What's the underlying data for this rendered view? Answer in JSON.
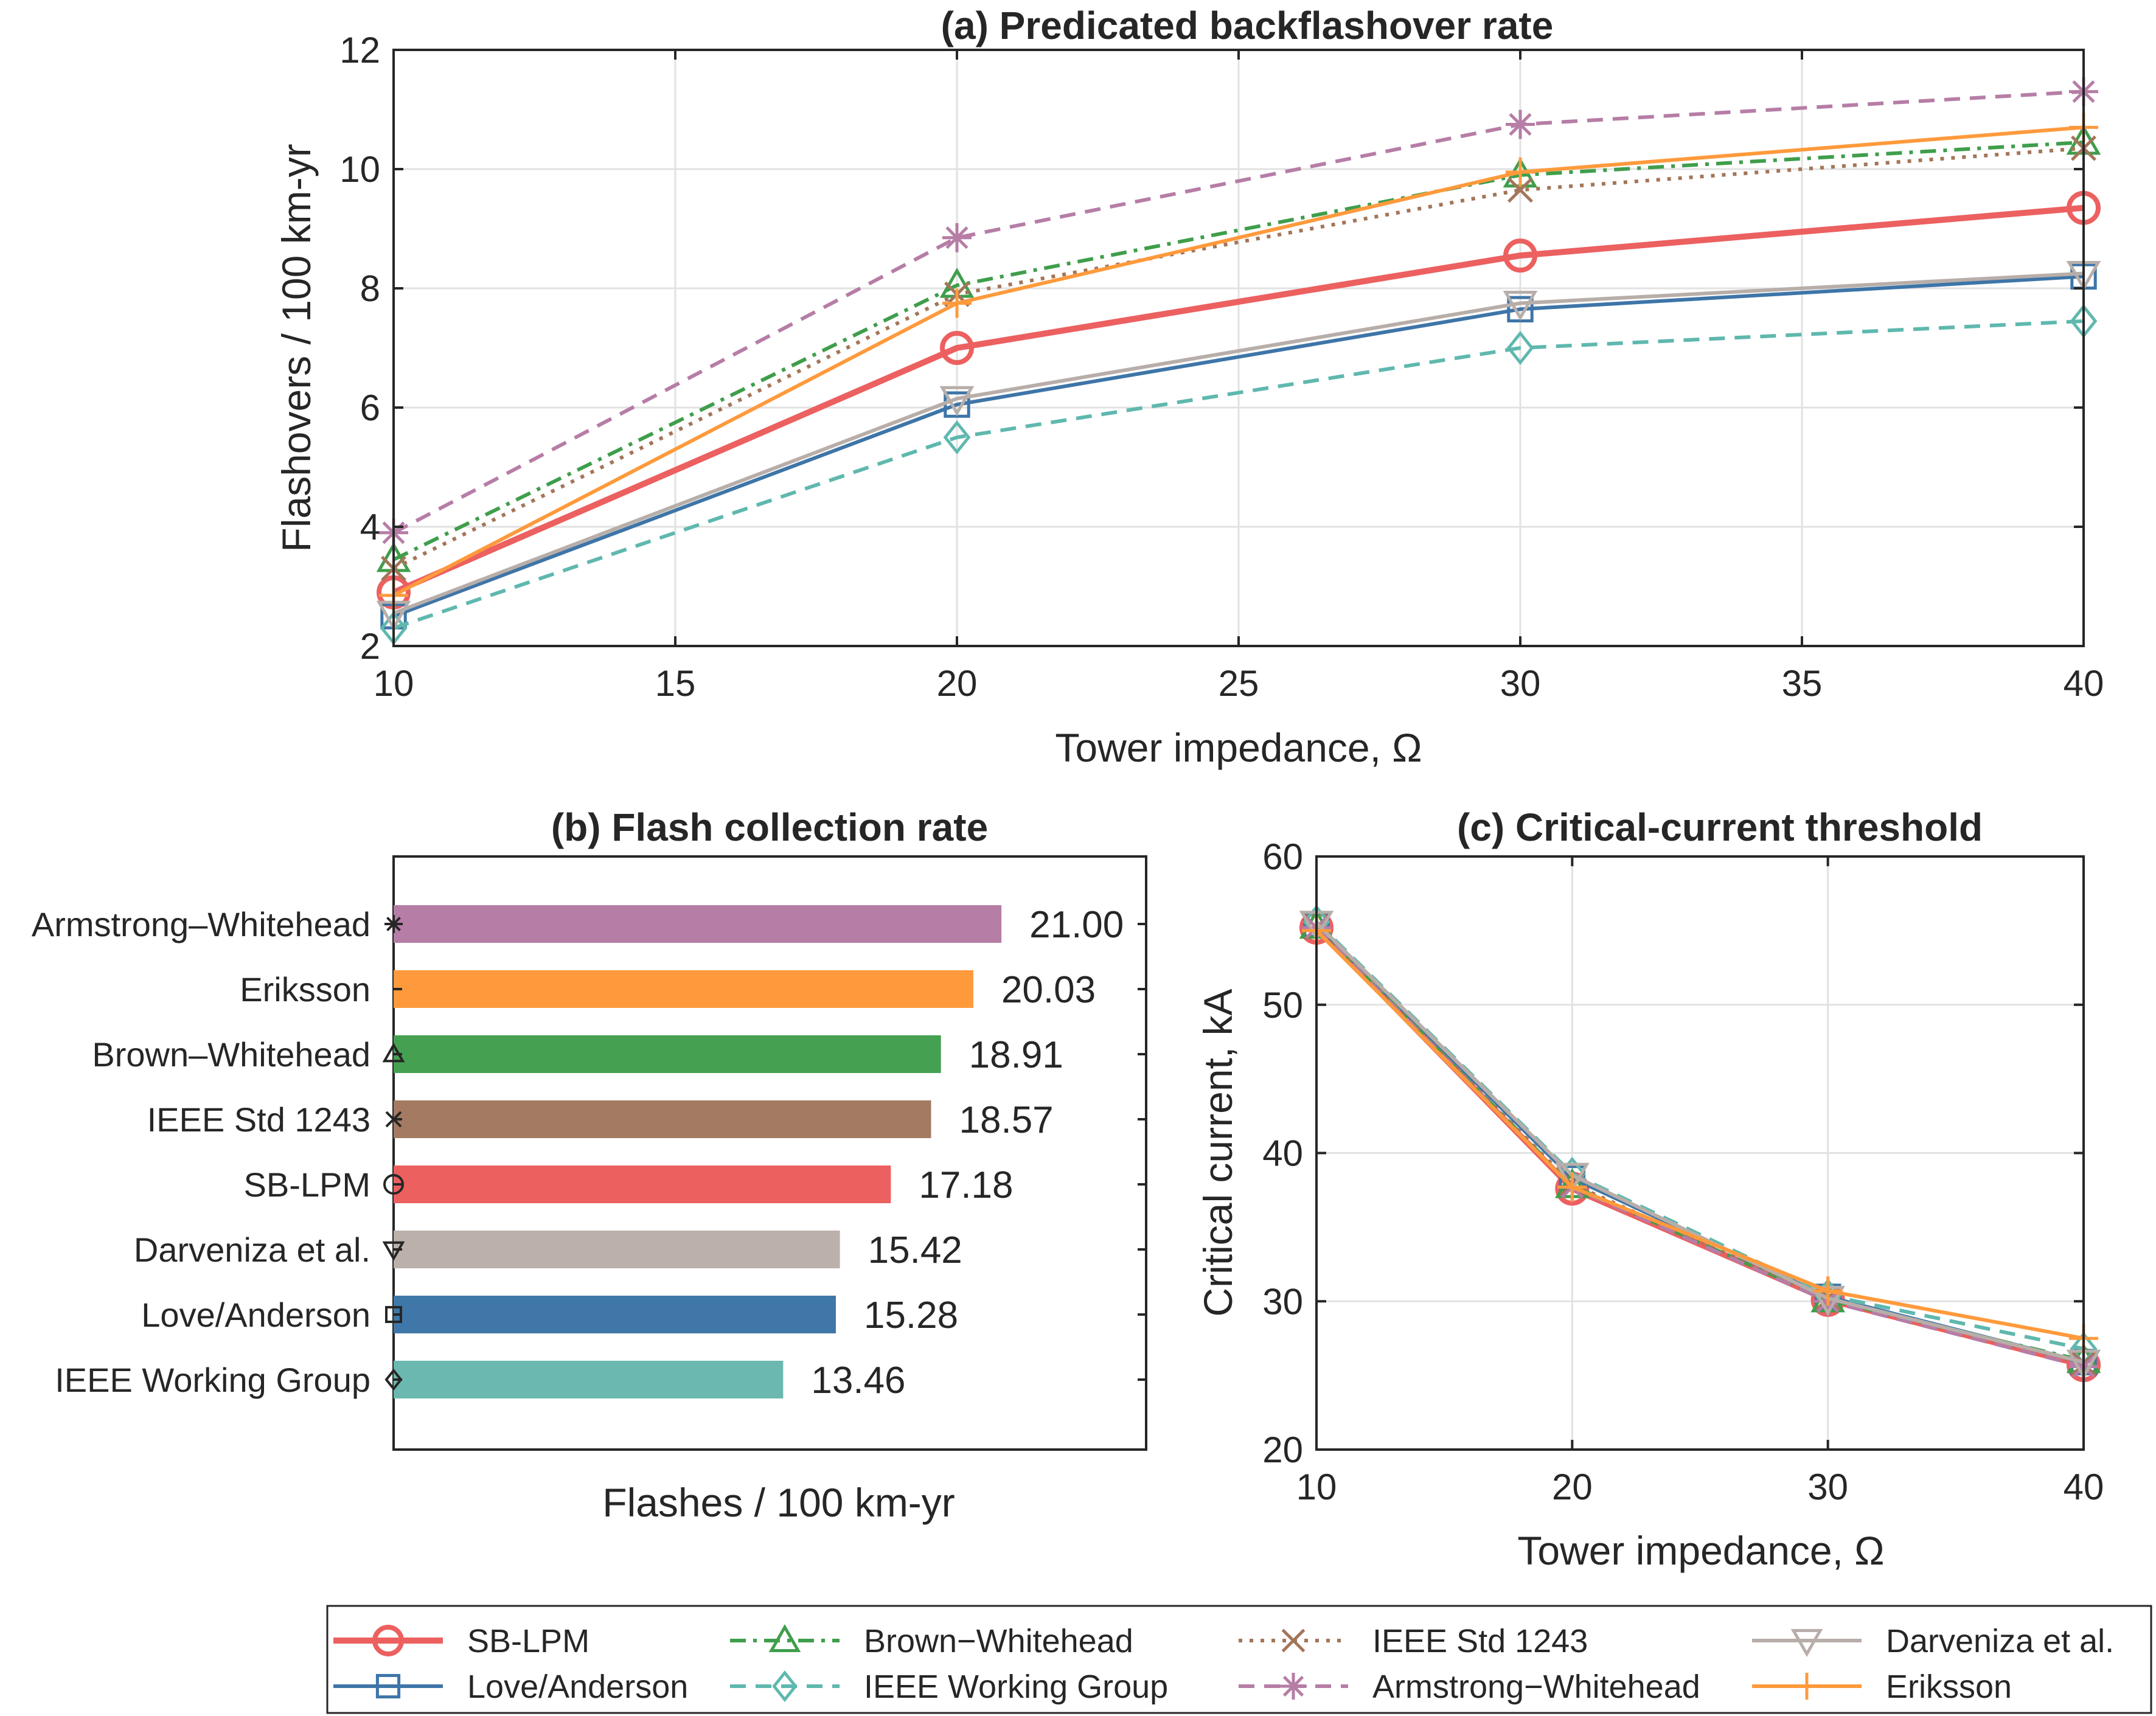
{
  "chart_data": [
    {
      "type": "line",
      "title": "(a) Predicated backflashover rate",
      "xlabel": "Tower impedance, Ω",
      "ylabel": "Flashovers / 100 km-yr",
      "xlim": [
        10,
        40
      ],
      "ylim": [
        2,
        12
      ],
      "xticks": [
        "10",
        "15",
        "20",
        "25",
        "30",
        "35",
        "40"
      ],
      "yticks": [
        "2",
        "4",
        "6",
        "8",
        "10",
        "12"
      ],
      "grid": true,
      "x": [
        10,
        20,
        30,
        40
      ],
      "series": [
        {
          "name": "SB-LPM",
          "values": [
            2.9,
            7.0,
            8.55,
            9.35
          ],
          "color": "#EC6060",
          "marker": "circle",
          "dash": "solid"
        },
        {
          "name": "Love/Anderson",
          "values": [
            2.5,
            6.05,
            7.65,
            8.2
          ],
          "color": "#3E75A8",
          "marker": "square",
          "dash": "solid"
        },
        {
          "name": "Brown–Whitehead",
          "values": [
            3.45,
            8.05,
            9.9,
            10.45
          ],
          "color": "#3F9E4B",
          "marker": "triangle-up",
          "dash": "dashdot"
        },
        {
          "name": "IEEE Working Group",
          "values": [
            2.3,
            5.5,
            7.0,
            7.45
          ],
          "color": "#5FB8AE",
          "marker": "diamond",
          "dash": "dashed"
        },
        {
          "name": "IEEE Std 1243",
          "values": [
            3.3,
            7.9,
            9.65,
            10.35
          ],
          "color": "#A47558",
          "marker": "x",
          "dash": "dotted"
        },
        {
          "name": "Armstrong–Whitehead",
          "values": [
            3.9,
            8.85,
            10.75,
            11.3
          ],
          "color": "#B67DA6",
          "marker": "asterisk",
          "dash": "dashed"
        },
        {
          "name": "Darveniza et al.",
          "values": [
            2.55,
            6.15,
            7.75,
            8.25
          ],
          "color": "#B8AEA9",
          "marker": "triangle-down",
          "dash": "solid"
        },
        {
          "name": "Eriksson",
          "values": [
            2.85,
            7.75,
            9.95,
            10.7
          ],
          "color": "#FF9A3C",
          "marker": "plus",
          "dash": "solid"
        }
      ]
    },
    {
      "type": "bar",
      "orientation": "horizontal",
      "title": "(b) Flash collection rate",
      "xlabel": "Flashes / 100 km-yr",
      "categories": [
        "Armstrong–Whitehead",
        "Eriksson",
        "Brown–Whitehead",
        "IEEE Std 1243",
        "SB-LPM",
        "Darveniza et al.",
        "Love/Anderson",
        "IEEE Working Group"
      ],
      "values": [
        21.0,
        20.03,
        18.91,
        18.57,
        17.18,
        15.42,
        15.28,
        13.46
      ],
      "labels": [
        "21.00",
        "20.03",
        "18.91",
        "18.57",
        "17.18",
        "15.42",
        "15.28",
        "13.46"
      ],
      "colors": [
        "#B67DA6",
        "#FF9A3C",
        "#45A052",
        "#A47A62",
        "#EC6060",
        "#BCB0AB",
        "#3F78A8",
        "#6BB8B0"
      ],
      "markers": [
        "asterisk",
        "",
        "triangle-up",
        "x",
        "circle",
        "triangle-down",
        "square",
        "diamond"
      ],
      "xlim": [
        0,
        26
      ]
    },
    {
      "type": "line",
      "title": "(c) Critical-current threshold",
      "xlabel": "Tower impedance, Ω",
      "ylabel": "Critical current, kA",
      "xlim": [
        10,
        40
      ],
      "ylim": [
        20,
        60
      ],
      "xticks": [
        "10",
        "20",
        "30",
        "40"
      ],
      "yticks": [
        "20",
        "30",
        "40",
        "50",
        "60"
      ],
      "grid": true,
      "x": [
        10,
        20,
        30,
        40
      ],
      "series": [
        {
          "name": "SB-LPM",
          "values": [
            55.2,
            37.6,
            30.1,
            25.7
          ],
          "color": "#EC6060",
          "marker": "circle",
          "dash": "solid"
        },
        {
          "name": "Love/Anderson",
          "values": [
            55.4,
            38.3,
            30.3,
            25.9
          ],
          "color": "#3E75A8",
          "marker": "square",
          "dash": "solid"
        },
        {
          "name": "Brown–Whitehead",
          "values": [
            55.3,
            37.8,
            30.1,
            26.0
          ],
          "color": "#3F9E4B",
          "marker": "triangle-up",
          "dash": "dashdot"
        },
        {
          "name": "IEEE Working Group",
          "values": [
            55.6,
            38.6,
            30.4,
            26.8
          ],
          "color": "#5FB8AE",
          "marker": "diamond",
          "dash": "dashed"
        },
        {
          "name": "IEEE Std 1243",
          "values": [
            55.2,
            37.9,
            30.2,
            25.8
          ],
          "color": "#A47558",
          "marker": "x",
          "dash": "dotted"
        },
        {
          "name": "Armstrong–Whitehead",
          "values": [
            55.2,
            37.7,
            30.0,
            25.6
          ],
          "color": "#B67DA6",
          "marker": "asterisk",
          "dash": "dashed"
        },
        {
          "name": "Darveniza et al.",
          "values": [
            55.5,
            38.5,
            30.2,
            25.9
          ],
          "color": "#B8AEA9",
          "marker": "triangle-down",
          "dash": "solid"
        },
        {
          "name": "Eriksson",
          "values": [
            55.0,
            37.7,
            30.7,
            27.5
          ],
          "color": "#FF9A3C",
          "marker": "plus",
          "dash": "solid"
        }
      ]
    }
  ],
  "legend": {
    "placement": "bottom",
    "entries": [
      {
        "name": "SB-LPM",
        "color": "#EC6060",
        "marker": "circle",
        "dash": "solid"
      },
      {
        "name": "Brown−Whitehead",
        "color": "#3F9E4B",
        "marker": "triangle-up",
        "dash": "dashdot"
      },
      {
        "name": "IEEE Std 1243",
        "color": "#A47558",
        "marker": "x",
        "dash": "dotted"
      },
      {
        "name": "Darveniza et al.",
        "color": "#B8AEA9",
        "marker": "triangle-down",
        "dash": "solid"
      },
      {
        "name": "Love/Anderson",
        "color": "#3E75A8",
        "marker": "square",
        "dash": "solid"
      },
      {
        "name": "IEEE Working Group",
        "color": "#5FB8AE",
        "marker": "diamond",
        "dash": "dashed"
      },
      {
        "name": "Armstrong−Whitehead",
        "color": "#B67DA6",
        "marker": "asterisk",
        "dash": "dashed"
      },
      {
        "name": "Eriksson",
        "color": "#FF9A3C",
        "marker": "plus",
        "dash": "solid"
      }
    ]
  }
}
